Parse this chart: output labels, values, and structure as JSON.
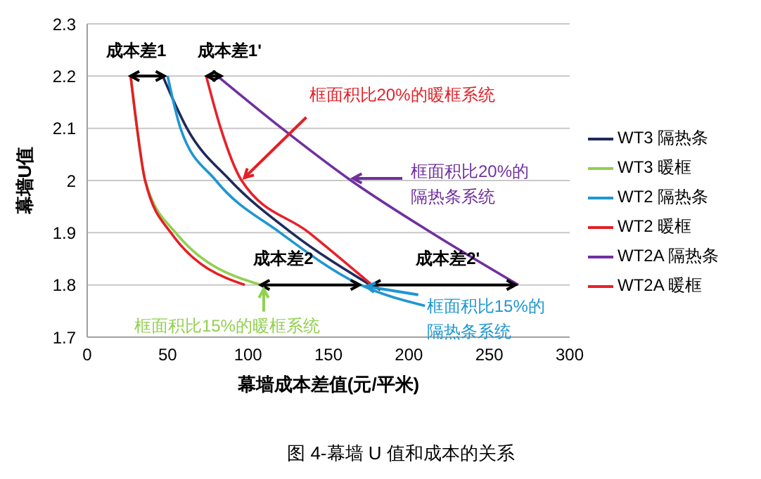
{
  "chart_data": {
    "type": "line",
    "title": "图 4-幕墙 U 值和成本的关系",
    "xlabel": "幕墙成本差值(元/平米)",
    "ylabel": "幕墙U值",
    "xlim": [
      0,
      300
    ],
    "xticks": [
      0,
      50,
      100,
      150,
      200,
      250,
      300
    ],
    "ylim": [
      1.7,
      2.3
    ],
    "yticks": [
      1.7,
      1.8,
      1.9,
      2,
      2.1,
      2.2,
      2.3
    ],
    "grid": "y",
    "legend": "right",
    "marker": "none",
    "line_style": "solid",
    "series": [
      {
        "name": "WT3 隔热条",
        "color": "#1f2a5c",
        "x": [
          47,
          62,
          89,
          127,
          176
        ],
        "values": [
          2.2,
          2.1,
          2.0,
          1.9,
          1.8
        ]
      },
      {
        "name": "WT3 暖框",
        "color": "#92d050",
        "x": [
          27,
          31,
          36,
          55,
          108
        ],
        "values": [
          2.2,
          2.1,
          2.0,
          1.9,
          1.8
        ]
      },
      {
        "name": "WT2 隔热条",
        "color": "#1f96d2",
        "x": [
          50,
          58,
          80,
          120,
          170,
          210
        ],
        "values": [
          2.2,
          2.1,
          2.0,
          1.9,
          1.8,
          1.76
        ]
      },
      {
        "name": "WT2 暖框",
        "color": "#e41f26",
        "x": [
          27,
          31,
          36,
          52,
          98
        ],
        "values": [
          2.2,
          2.1,
          2.0,
          1.9,
          1.8
        ]
      },
      {
        "name": "WT2A 隔热条",
        "color": "#7030a0",
        "x": [
          81,
          121,
          164,
          214,
          268
        ],
        "values": [
          2.2,
          2.1,
          2.0,
          1.9,
          1.8
        ]
      },
      {
        "name": "WT2A 暖框",
        "color": "#e8202a",
        "x": [
          74,
          83,
          96,
          138,
          177
        ],
        "values": [
          2.2,
          2.1,
          2.0,
          1.9,
          1.8
        ]
      }
    ],
    "annotations": [
      {
        "text": "成本差1",
        "x": 27,
        "y": 2.2
      },
      {
        "text": "成本差1'",
        "x": 78,
        "y": 2.2
      },
      {
        "text": "成本差2",
        "x": 108,
        "y": 1.8
      },
      {
        "text": "成本差2'",
        "x": 177,
        "y": 1.8
      },
      {
        "text": "框面积比20%的暖框系统",
        "x": 96,
        "y": 2.0
      },
      "框面积比20%的隔热条系统",
      {
        "text": "框面积比15%的暖框系统",
        "x": 108,
        "y": 1.8
      },
      {
        "text": "框面积比15%的隔热条系统",
        "x": 170,
        "y": 1.8
      }
    ]
  }
}
